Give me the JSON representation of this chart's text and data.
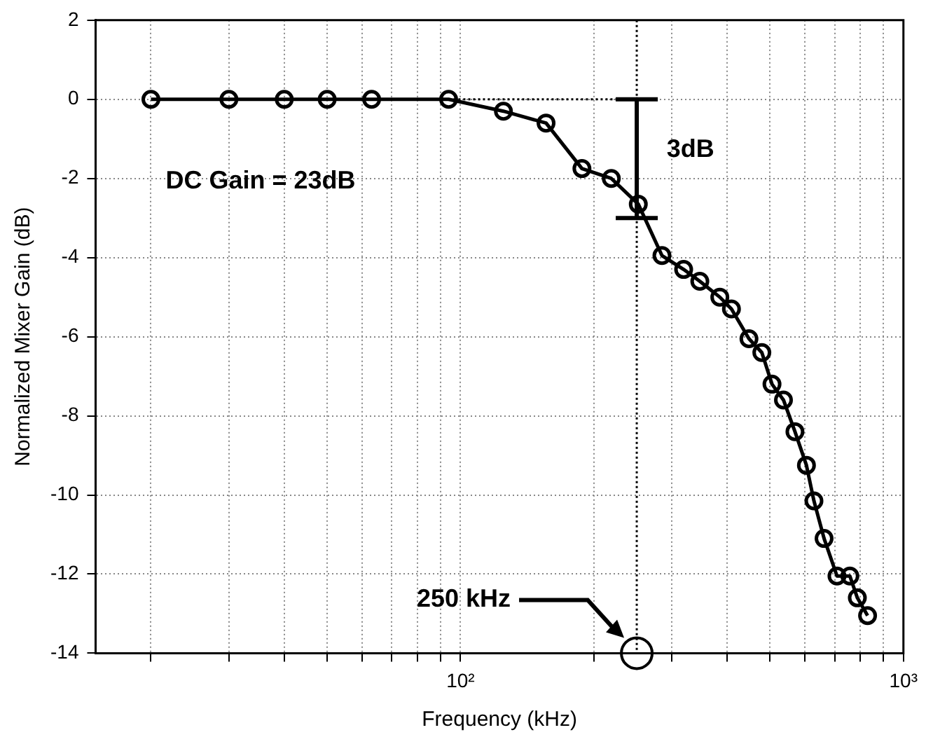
{
  "chart_data": {
    "type": "line",
    "xlabel": "Frequency (kHz)",
    "ylabel": "Normalized Mixer Gain (dB)",
    "log": "x",
    "xlim": [
      15,
      1000
    ],
    "ylim": [
      -14,
      2
    ],
    "xticks": [
      {
        "value": 20,
        "label": null
      },
      {
        "value": 30,
        "label": null
      },
      {
        "value": 40,
        "label": null
      },
      {
        "value": 50,
        "label": null
      },
      {
        "value": 60,
        "label": null
      },
      {
        "value": 70,
        "label": null
      },
      {
        "value": 80,
        "label": null
      },
      {
        "value": 90,
        "label": null
      },
      {
        "value": 100,
        "label": "10²"
      },
      {
        "value": 200,
        "label": null
      },
      {
        "value": 300,
        "label": null
      },
      {
        "value": 400,
        "label": null
      },
      {
        "value": 500,
        "label": null
      },
      {
        "value": 600,
        "label": null
      },
      {
        "value": 700,
        "label": null
      },
      {
        "value": 800,
        "label": null
      },
      {
        "value": 900,
        "label": null
      },
      {
        "value": 1000,
        "label": "10³"
      }
    ],
    "yticks": [
      2,
      0,
      -2,
      -4,
      -6,
      -8,
      -10,
      -12,
      -14
    ],
    "grid": true,
    "marker": "circle",
    "line_style": "solid",
    "series": [
      {
        "color": "#000000",
        "x": [
          20,
          30,
          40,
          50,
          63,
          94,
          125,
          156,
          188,
          219,
          252,
          285,
          319,
          347,
          385,
          409,
          448,
          479,
          505,
          536,
          569,
          604,
          628,
          662,
          708,
          757,
          787,
          830
        ],
        "values": [
          0,
          0,
          0,
          0,
          0,
          0,
          -0.3,
          -0.6,
          -1.75,
          -2.0,
          -2.65,
          -3.95,
          -4.3,
          -4.6,
          -5.0,
          -5.3,
          -6.05,
          -6.4,
          -7.2,
          -7.6,
          -8.4,
          -9.25,
          -10.15,
          -11.1,
          -12.05,
          -12.05,
          -12.6,
          -13.05
        ]
      },
      {
        "type": "line",
        "marker": "none",
        "color": "#000000",
        "x": [
          250,
          250
        ],
        "values": [
          0,
          -3
        ]
      }
    ],
    "ref_lines": [
      {
        "axis": "y",
        "value": 0,
        "line_style": "dotted",
        "color": "#000000"
      },
      {
        "axis": "x",
        "value": 250,
        "label": "250 kHz",
        "line_style": "dotted",
        "color": "#000000"
      }
    ],
    "annotations": [
      "DC Gain = 23dB",
      "3dB"
    ]
  }
}
